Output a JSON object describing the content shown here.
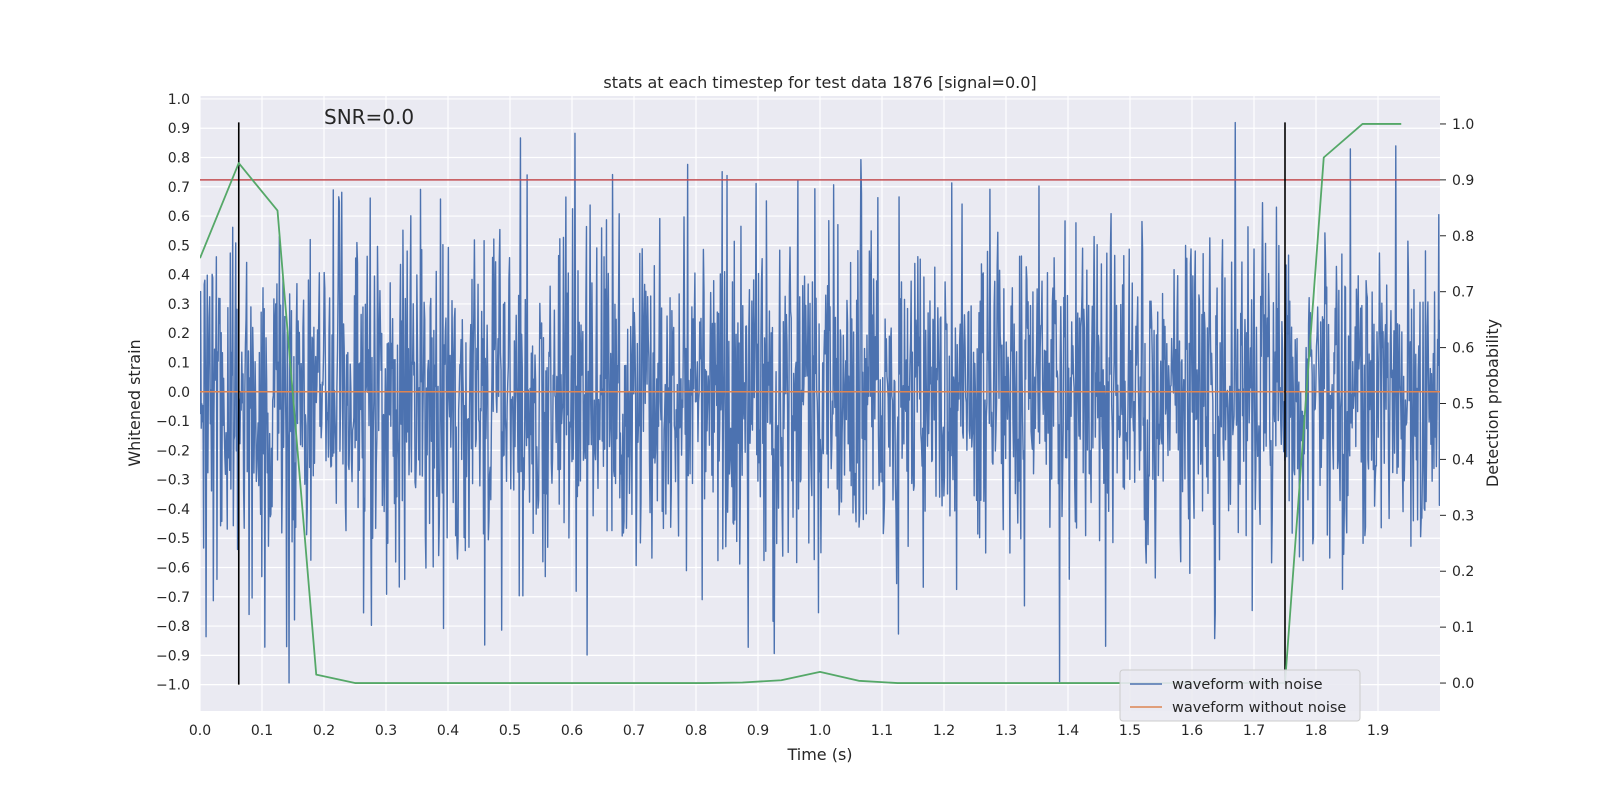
{
  "chart_data": {
    "type": "line",
    "title": "stats at each timestep for test data 1876 [signal=0.0]",
    "annotation": "SNR=0.0",
    "xlabel": "Time (s)",
    "ylabel": "Whitened strain",
    "y2label": "Detection probability",
    "xlim": [
      0.0,
      2.0
    ],
    "ylim": [
      -1.09,
      1.01
    ],
    "y2lim": [
      -0.05,
      1.05
    ],
    "x_ticks": [
      0.0,
      0.1,
      0.2,
      0.3,
      0.4,
      0.5,
      0.6,
      0.7,
      0.8,
      0.9,
      1.0,
      1.1,
      1.2,
      1.3,
      1.4,
      1.5,
      1.6,
      1.7,
      1.8,
      1.9
    ],
    "x_tick_labels": [
      "0.0",
      "0.1",
      "0.2",
      "0.3",
      "0.4",
      "0.5",
      "0.6",
      "0.7",
      "0.8",
      "0.9",
      "1.0",
      "1.1",
      "1.2",
      "1.3",
      "1.4",
      "1.5",
      "1.6",
      "1.7",
      "1.8",
      "1.9"
    ],
    "y_ticks": [
      1.0,
      0.9,
      0.8,
      0.7,
      0.6,
      0.5,
      0.4,
      0.3,
      0.2,
      0.1,
      0.0,
      -0.1,
      -0.2,
      -0.3,
      -0.4,
      -0.5,
      -0.6,
      -0.7,
      -0.8,
      -0.9,
      -1.0
    ],
    "y_tick_labels": [
      "1.0",
      "0.9",
      "0.8",
      "0.7",
      "0.6",
      "0.5",
      "0.4",
      "0.3",
      "0.2",
      "0.1",
      "0.0",
      "−0.1",
      "−0.2",
      "−0.3",
      "−0.4",
      "−0.5",
      "−0.6",
      "−0.7",
      "−0.8",
      "−0.9",
      "−1.0"
    ],
    "y2_ticks": [
      1.0,
      0.9,
      0.8,
      0.7,
      0.6,
      0.5,
      0.4,
      0.3,
      0.2,
      0.1,
      0.0
    ],
    "y2_tick_labels": [
      "1.0",
      "0.9",
      "0.8",
      "0.7",
      "0.6",
      "0.5",
      "0.4",
      "0.3",
      "0.2",
      "0.1",
      "0.0"
    ],
    "grid": true,
    "legend_position": "lower-right",
    "series": [
      {
        "name": "waveform with noise",
        "axis": "left",
        "color": "#4c72b0",
        "kind": "noise",
        "sample_count": 2048,
        "seed": 1876,
        "std": 0.3,
        "clip": [
          -1.0,
          0.92
        ]
      },
      {
        "name": "waveform without noise",
        "axis": "left",
        "color": "#dd8452",
        "x": [
          0.0,
          2.0
        ],
        "y": [
          0.0,
          0.0
        ]
      },
      {
        "name": "detection probability",
        "axis": "right",
        "color": "#55a868",
        "x": [
          0.0,
          0.0625,
          0.125,
          0.1875,
          0.25,
          0.3125,
          0.375,
          0.4375,
          0.5,
          0.5625,
          0.625,
          0.6875,
          0.75,
          0.8125,
          0.875,
          0.9375,
          1.0,
          1.0625,
          1.125,
          1.1875,
          1.25,
          1.3125,
          1.375,
          1.4375,
          1.5,
          1.5625,
          1.625,
          1.6875,
          1.75,
          1.8125,
          1.875,
          1.9375
        ],
        "y": [
          0.76,
          0.93,
          0.845,
          0.015,
          0.0,
          0.0,
          0.0,
          0.0,
          0.0,
          0.0,
          0.0,
          0.0,
          0.0,
          0.0,
          0.001,
          0.005,
          0.02,
          0.004,
          0.0,
          0.0,
          0.0,
          0.0,
          0.0,
          0.0,
          0.0,
          0.0,
          0.0,
          0.0,
          0.0,
          0.94,
          1.0,
          1.0
        ]
      }
    ],
    "threshold_line": {
      "axis": "right",
      "value": 0.9,
      "color": "#c44e52"
    },
    "marker_lines": [
      {
        "x": 0.0625,
        "color": "#000000"
      },
      {
        "x": 1.75,
        "color": "#000000"
      }
    ],
    "marker_line_ylim": [
      -1.0,
      0.92
    ]
  }
}
